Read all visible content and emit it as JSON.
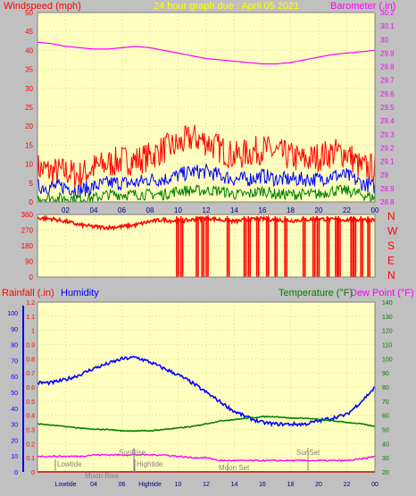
{
  "title": "24 hour graph due : April 05 2021",
  "panel_top": {
    "left_label": "Windspeed (mph)",
    "right_label": "Barometer (.in)",
    "left_ticks": [
      0,
      5,
      10,
      15,
      20,
      25,
      30,
      35,
      40,
      45,
      50
    ],
    "right_ticks": [
      "28.8",
      "28.9",
      "29",
      "29.1",
      "29.2",
      "29.3",
      "29.4",
      "29.5",
      "29.6",
      "29.7",
      "29.8",
      "29.9",
      "30",
      "30.1",
      "30.2"
    ],
    "x_ticks": [
      "02",
      "04",
      "06",
      "08",
      "10",
      "12",
      "14",
      "16",
      "18",
      "20",
      "22",
      "00"
    ]
  },
  "panel_mid": {
    "left_ticks": [
      0,
      90,
      180,
      270,
      360
    ],
    "compass": [
      "N",
      "W",
      "S",
      "E",
      "N"
    ]
  },
  "panel_bottom": {
    "left_label_rain": "Rainfall (.in)",
    "left_label_hum": "Humidity",
    "right_label_temp": "Temperature (°F)",
    "right_label_dew": "Dew Point (°F)",
    "rain_ticks": [
      "0",
      "0.1",
      "0.2",
      "0.3",
      "0.4",
      "0.5",
      "0.6",
      "0.7",
      "0.8",
      "0.9",
      "1",
      "1.1",
      "1.2"
    ],
    "hum_ticks": [
      0,
      10,
      20,
      30,
      40,
      50,
      60,
      70,
      80,
      90,
      100
    ],
    "temp_ticks": [
      20,
      30,
      40,
      50,
      60,
      70,
      80,
      90,
      100,
      110,
      120,
      130,
      140
    ],
    "annotations": [
      "SunRise",
      "SunSet",
      "Lowtide",
      "Hightide",
      "Moon Rise",
      "Moon Set"
    ],
    "x_ticks": [
      "Lowtide",
      "04",
      "06",
      "Hightide",
      "10",
      "12",
      "14",
      "16",
      "18",
      "20",
      "22",
      "00"
    ]
  },
  "colors": {
    "plot_bg": "#FFFFC0",
    "frame_bg": "#C0C0C0",
    "wind_max": "#FF0000",
    "wind_avg": "#0000FF",
    "wind_min": "#008000",
    "barometer": "#FF00FF",
    "direction": "#FF0000",
    "humidity": "#0000FF",
    "temperature": "#008000",
    "dewpoint": "#FF00FF",
    "rain": "#FF0000",
    "title": "#FFFF00",
    "compass": "#FF0000"
  },
  "chart_data": [
    {
      "type": "line",
      "title": "24 hour graph due : April 05 2021",
      "x_range_hours": [
        0,
        24
      ],
      "series": [
        {
          "name": "Windspeed (mph)",
          "axis": "left",
          "ylim": [
            0,
            50
          ],
          "gust_max": [
            9,
            8,
            8,
            7,
            9,
            10,
            11,
            11,
            12,
            14,
            15,
            17,
            16,
            14,
            12,
            13,
            14,
            13,
            12,
            11,
            12,
            13,
            13,
            9,
            9
          ],
          "avg": [
            4,
            4,
            4,
            3,
            4,
            5,
            5,
            5,
            6,
            6,
            7,
            8,
            8,
            7,
            6,
            6,
            7,
            6,
            6,
            6,
            6,
            7,
            7,
            5,
            4
          ],
          "min": [
            1,
            1,
            1,
            1,
            1,
            2,
            2,
            2,
            2,
            2,
            3,
            3,
            3,
            3,
            2,
            2,
            3,
            2,
            2,
            2,
            2,
            3,
            3,
            2,
            1
          ]
        },
        {
          "name": "Barometer (.in)",
          "axis": "right",
          "ylim": [
            28.8,
            30.2
          ],
          "values": [
            29.98,
            29.97,
            29.95,
            29.94,
            29.93,
            29.93,
            29.94,
            29.95,
            29.94,
            29.92,
            29.9,
            29.88,
            29.86,
            29.85,
            29.84,
            29.83,
            29.82,
            29.82,
            29.83,
            29.85,
            29.87,
            29.89,
            29.9,
            29.91,
            29.92
          ]
        }
      ]
    },
    {
      "type": "line",
      "name": "Wind direction",
      "ylim": [
        0,
        360
      ],
      "values": [
        340,
        335,
        320,
        300,
        290,
        285,
        290,
        300,
        320,
        330,
        320,
        330,
        340,
        330,
        320,
        330,
        335,
        330,
        325,
        330,
        335,
        330,
        330,
        330,
        330
      ],
      "wrap_to_north_hours": [
        9.9,
        10.2,
        11.3,
        11.7,
        12.0,
        13.5,
        14.7,
        15.0,
        15.6,
        16.3,
        16.9,
        17.6,
        18.9,
        19.6,
        19.9,
        20.6,
        21.2,
        21.4,
        22.3,
        22.5,
        23.0,
        23.5
      ]
    },
    {
      "type": "line",
      "series": [
        {
          "name": "Humidity",
          "axis": "hum",
          "ylim": [
            0,
            100
          ],
          "values": [
            56,
            56,
            58,
            61,
            65,
            68,
            71,
            72,
            69,
            65,
            61,
            56,
            50,
            44,
            38,
            34,
            31,
            30,
            30,
            30,
            32,
            34,
            36,
            44,
            53
          ]
        },
        {
          "name": "Temperature (°F)",
          "axis": "temp",
          "ylim": [
            20,
            140
          ],
          "values": [
            54,
            53,
            52,
            51,
            50,
            50,
            49,
            49,
            49,
            50,
            51,
            52,
            54,
            56,
            57,
            58,
            59,
            59,
            58,
            58,
            57,
            56,
            55,
            54,
            52
          ]
        },
        {
          "name": "Dew Point (°F)",
          "axis": "temp",
          "ylim": [
            20,
            140
          ],
          "values": [
            31,
            31,
            31,
            31,
            32,
            32,
            32,
            32,
            32,
            32,
            31,
            30,
            30,
            28,
            28,
            28,
            28,
            28,
            28,
            28,
            28,
            28,
            28,
            29,
            31
          ]
        },
        {
          "name": "Rainfall (.in)",
          "axis": "rain",
          "ylim": [
            0,
            1.2
          ],
          "values": [
            0,
            0,
            0,
            0,
            0,
            0,
            0,
            0,
            0,
            0,
            0,
            0,
            0,
            0,
            0,
            0,
            0,
            0,
            0,
            0,
            0,
            0,
            0,
            0,
            0
          ]
        }
      ]
    }
  ]
}
